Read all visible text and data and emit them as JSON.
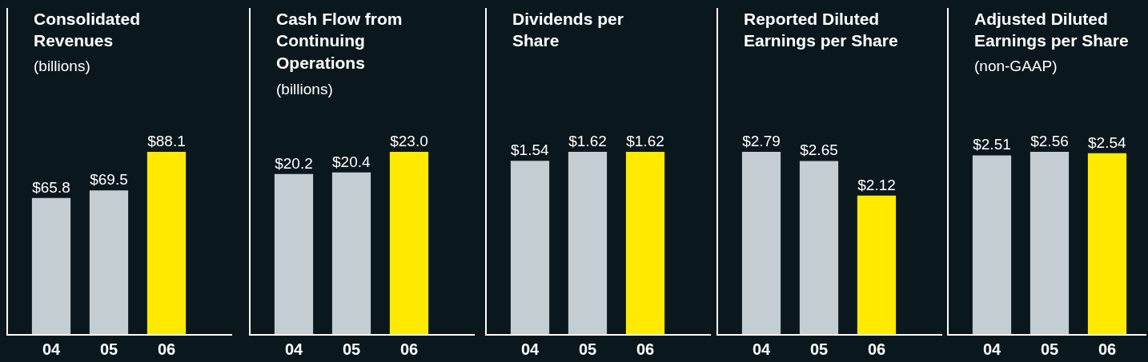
{
  "chart_data": [
    {
      "type": "bar",
      "title": "Consolidated Revenues",
      "subtitle": "(billions)",
      "categories": [
        "04",
        "05",
        "06"
      ],
      "values": [
        65.8,
        69.5,
        88.1
      ],
      "colors": [
        "#c3cdd2",
        "#c3cdd2",
        "#ffea00"
      ],
      "value_labels": [
        "$65.8",
        "$69.5",
        "$88.1"
      ]
    },
    {
      "type": "bar",
      "title": "Cash Flow from Continuing Operations",
      "subtitle": "(billions)",
      "categories": [
        "04",
        "05",
        "06"
      ],
      "values": [
        20.2,
        20.4,
        23.0
      ],
      "colors": [
        "#c3cdd2",
        "#c3cdd2",
        "#ffea00"
      ],
      "value_labels": [
        "$20.2",
        "$20.4",
        "$23.0"
      ]
    },
    {
      "type": "bar",
      "title": "Dividends per Share",
      "categories": [
        "04",
        "05",
        "06"
      ],
      "values": [
        1.54,
        1.62,
        1.62
      ],
      "colors": [
        "#c3cdd2",
        "#c3cdd2",
        "#ffea00"
      ],
      "value_labels": [
        "$1.54",
        "$1.62",
        "$1.62"
      ]
    },
    {
      "type": "bar",
      "title": "Reported Diluted Earnings per Share",
      "categories": [
        "04",
        "05",
        "06"
      ],
      "values": [
        2.79,
        2.65,
        2.12
      ],
      "colors": [
        "#c3cdd2",
        "#c3cdd2",
        "#ffea00"
      ],
      "value_labels": [
        "$2.79",
        "$2.65",
        "$2.12"
      ]
    },
    {
      "type": "bar",
      "title": "Adjusted Diluted Earnings per Share",
      "subtitle": "(non-GAAP)",
      "categories": [
        "04",
        "05",
        "06"
      ],
      "values": [
        2.51,
        2.56,
        2.54
      ],
      "colors": [
        "#c3cdd2",
        "#c3cdd2",
        "#ffea00"
      ],
      "value_labels": [
        "$2.51",
        "$2.56",
        "$2.54"
      ]
    }
  ]
}
